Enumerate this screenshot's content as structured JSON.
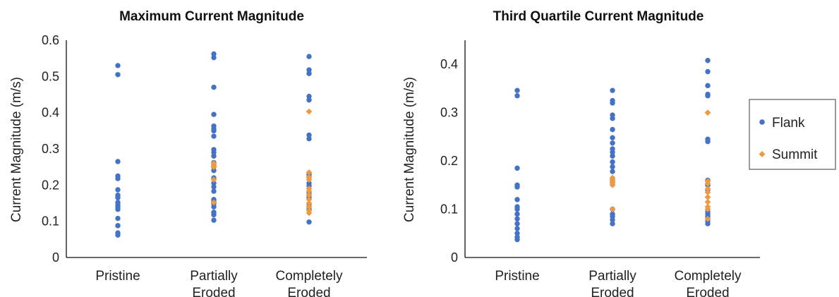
{
  "colors": {
    "flank": "#4472c4",
    "summit": "#ed9a43"
  },
  "legend": {
    "flank_label": "Flank",
    "summit_label": "Summit",
    "placement": "right"
  },
  "chart_data": [
    {
      "type": "scatter",
      "title": "Maximum Current Magnitude",
      "ylabel": "Current Magnitude (m/s)",
      "xlabel": "",
      "ylim": [
        0,
        0.6
      ],
      "yticks": [
        "0",
        "0.1",
        "0.2",
        "0.3",
        "0.4",
        "0.5",
        "0.6"
      ],
      "categories": [
        [
          "Pristine"
        ],
        [
          "Partially",
          "Eroded"
        ],
        [
          "Completely",
          "Eroded"
        ]
      ],
      "grid": false,
      "series": [
        {
          "name": "Flank",
          "marker": "circle",
          "points": [
            [
              0,
              [
                0.53,
                0.505,
                0.265,
                0.225,
                0.218,
                0.187,
                0.172,
                0.165,
                0.152,
                0.145,
                0.14,
                0.133,
                0.108,
                0.088,
                0.068,
                0.062
              ]
            ],
            [
              1,
              [
                0.562,
                0.552,
                0.47,
                0.395,
                0.363,
                0.355,
                0.35,
                0.335,
                0.298,
                0.29,
                0.28,
                0.262,
                0.255,
                0.25,
                0.24,
                0.22,
                0.205,
                0.195,
                0.183,
                0.16,
                0.155,
                0.148,
                0.14,
                0.125,
                0.118,
                0.103
              ]
            ],
            [
              2,
              [
                0.555,
                0.518,
                0.508,
                0.445,
                0.435,
                0.338,
                0.328,
                0.232,
                0.228,
                0.222,
                0.205,
                0.198,
                0.18,
                0.172,
                0.165,
                0.148,
                0.14,
                0.133,
                0.098
              ]
            ]
          ]
        },
        {
          "name": "Summit",
          "marker": "diamond",
          "points": [
            [
              0,
              []
            ],
            [
              1,
              [
                0.26,
                0.255,
                0.25,
                0.215,
                0.152
              ]
            ],
            [
              2,
              [
                0.403,
                0.235,
                0.222,
                0.215,
                0.19,
                0.183,
                0.172,
                0.16,
                0.15,
                0.14,
                0.13,
                0.123
              ]
            ]
          ]
        }
      ]
    },
    {
      "type": "scatter",
      "title": "Third Quartile Current Magnitude",
      "ylabel": "Current Magnitude (m/s)",
      "xlabel": "",
      "ylim": [
        0,
        0.45
      ],
      "yticks": [
        "0",
        "0.1",
        "0.2",
        "0.3",
        "0.4"
      ],
      "categories": [
        [
          "Pristine"
        ],
        [
          "Partially",
          "Eroded"
        ],
        [
          "Completely",
          "Eroded"
        ]
      ],
      "grid": false,
      "series": [
        {
          "name": "Flank",
          "marker": "circle",
          "points": [
            [
              0,
              [
                0.346,
                0.335,
                0.185,
                0.15,
                0.146,
                0.12,
                0.105,
                0.1,
                0.09,
                0.08,
                0.07,
                0.06,
                0.05,
                0.042,
                0.037
              ]
            ],
            [
              1,
              [
                0.346,
                0.325,
                0.32,
                0.295,
                0.288,
                0.265,
                0.248,
                0.237,
                0.225,
                0.218,
                0.21,
                0.198,
                0.188,
                0.178,
                0.16,
                0.155,
                0.1,
                0.09,
                0.085,
                0.078,
                0.07
              ]
            ],
            [
              2,
              [
                0.408,
                0.385,
                0.356,
                0.338,
                0.335,
                0.245,
                0.24,
                0.16,
                0.15,
                0.14,
                0.095,
                0.09,
                0.085,
                0.075,
                0.07
              ]
            ]
          ]
        },
        {
          "name": "Summit",
          "marker": "diamond",
          "points": [
            [
              0,
              []
            ],
            [
              1,
              [
                0.165,
                0.16,
                0.155,
                0.15,
                0.1
              ]
            ],
            [
              2,
              [
                0.3,
                0.158,
                0.153,
                0.142,
                0.135,
                0.125,
                0.115,
                0.105,
                0.1,
                0.08
              ]
            ]
          ]
        }
      ]
    }
  ]
}
